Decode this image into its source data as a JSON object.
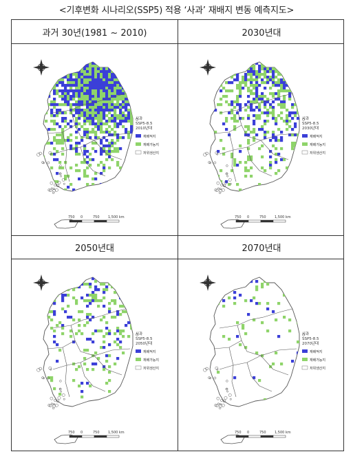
{
  "title": "<기후변화 시나리오(SSP5) 적용 ‘사과’ 재배지 변동 예측지도>",
  "panels": [
    {
      "heading": "과거 30년(1981 ~ 2010)",
      "legend": {
        "crop": "사과",
        "scenario": "SSP5-8.5",
        "period": "2010년대",
        "items": [
          "재배적지",
          "재배가능지",
          "저위생산지"
        ]
      },
      "scale": [
        "750",
        "0",
        "750",
        "1,500 km"
      ],
      "suitable_share": 0.32,
      "possible_share": 0.28
    },
    {
      "heading": "2030년대",
      "legend": {
        "crop": "사과",
        "scenario": "SSP5-8.5",
        "period": "2030년대",
        "items": [
          "재배적지",
          "재배가능지",
          "저위생산지"
        ]
      },
      "scale": [
        "750",
        "0",
        "750",
        "1,500 km"
      ],
      "suitable_share": 0.14,
      "possible_share": 0.18
    },
    {
      "heading": "2050년대",
      "legend": {
        "crop": "사과",
        "scenario": "SSP5-8.5",
        "period": "2050년대",
        "items": [
          "재배적지",
          "재배가능지",
          "저위생산지"
        ]
      },
      "scale": [
        "750",
        "0",
        "750",
        "1,500 km"
      ],
      "suitable_share": 0.06,
      "possible_share": 0.09
    },
    {
      "heading": "2070년대",
      "legend": {
        "crop": "사과",
        "scenario": "SSP5-8.5",
        "period": "2070년대",
        "items": [
          "재배적지",
          "재배가능지",
          "저위생산지"
        ]
      },
      "scale": [
        "750",
        "0",
        "750",
        "1,500 km"
      ],
      "suitable_share": 0.01,
      "possible_share": 0.03
    }
  ],
  "colors": {
    "suitable": "#3b3fd8",
    "possible": "#8fd46a",
    "low": "#ffffff",
    "outline": "#555555"
  }
}
